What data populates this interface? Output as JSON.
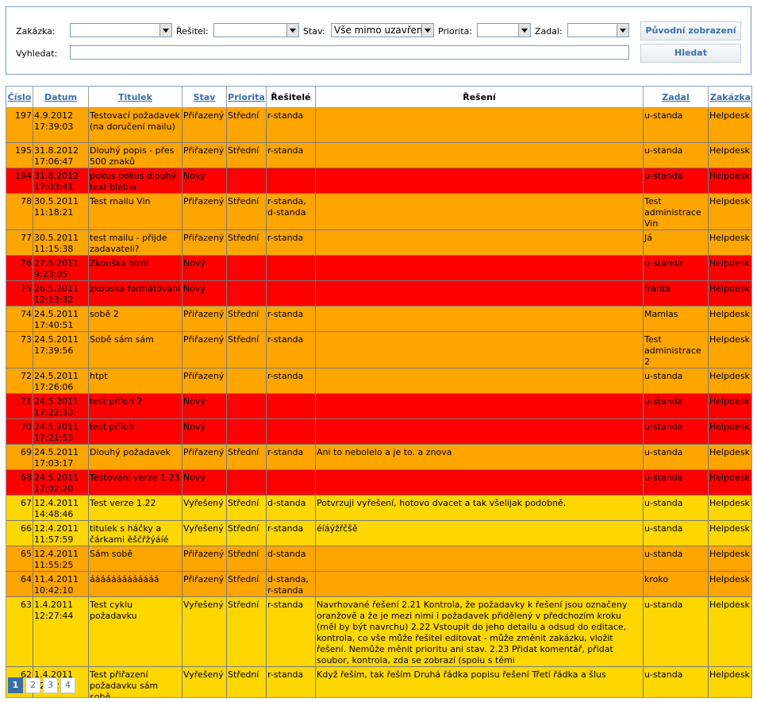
{
  "filters": {
    "zakazka_label": "Zakázka:",
    "zakazka_value": "",
    "resitel_label": "Řešitel:",
    "resitel_value": "",
    "stav_label": "Stav:",
    "stav_value": "Vše mimo uzavřen",
    "priorita_label": "Priorita:",
    "priorita_value": "",
    "zadal_label": "Zadal:",
    "zadal_value": "",
    "vyhledat_label": "Vyhledat:",
    "vyhledat_value": "",
    "reset_button": "Původní zobrazení",
    "search_button": "Hledat"
  },
  "table": {
    "headers": {
      "cislo": "Číslo",
      "datum": "Datum",
      "titulek": "Titulek",
      "stav": "Stav",
      "priorita": "Priorita",
      "resitele": "Řešitelé",
      "reseni": "Řešení",
      "zadal": "Zadal",
      "zakazka": "Zakázka"
    },
    "status_colors": {
      "orange": "#ffa500",
      "red": "#ff0000",
      "yellow": "#ffd700"
    },
    "rows": [
      {
        "cislo": "197",
        "datum": "4.9.2012 17:39:03",
        "titulek": "Testovací požadavek (na doručení mailu)",
        "stav": "Přiřazený",
        "priorita": "Střední",
        "resitele": "r-standa",
        "reseni": "",
        "zadal": "u-standa",
        "zakazka": "Helpdesk",
        "color": "orange"
      },
      {
        "cislo": "195",
        "datum": "31.8.2012 17:06:47",
        "titulek": "Dlouhý popis - přes 500 znaků",
        "stav": "Přiřazený",
        "priorita": "Střední",
        "resitele": "r-standa",
        "reseni": "",
        "zadal": "u-standa",
        "zakazka": "Helpdesk",
        "color": "orange"
      },
      {
        "cislo": "194",
        "datum": "31.8.2012 17:03:41",
        "titulek": "pokus pokus dlouhý text blabla",
        "stav": "Nový",
        "priorita": "",
        "resitele": "",
        "reseni": "",
        "zadal": "u-standa",
        "zakazka": "Helpdesk",
        "color": "red"
      },
      {
        "cislo": "78",
        "datum": "30.5.2011 11:18:21",
        "titulek": "Test mailu Vin",
        "stav": "Přiřazený",
        "priorita": "Střední",
        "resitele": "r-standa, d-standa",
        "reseni": "",
        "zadal": "Test administrace Vin",
        "zakazka": "Helpdesk",
        "color": "orange"
      },
      {
        "cislo": "77",
        "datum": "30.5.2011 11:15:38",
        "titulek": "test mailu - přijde zadavateli?",
        "stav": "Přiřazený",
        "priorita": "Střední",
        "resitele": "r-standa",
        "reseni": "",
        "zadal": "Já",
        "zakazka": "Helpdesk",
        "color": "orange"
      },
      {
        "cislo": "76",
        "datum": "27.5.2011 9:23:05",
        "titulek": "Zkouška html",
        "stav": "Nový",
        "priorita": "",
        "resitele": "",
        "reseni": "",
        "zadal": "u-standa",
        "zakazka": "Helpdesk",
        "color": "red"
      },
      {
        "cislo": "75",
        "datum": "26.5.2011 12:13:32",
        "titulek": "zkouska formatovani",
        "stav": "Nový",
        "priorita": "",
        "resitele": "",
        "reseni": "",
        "zadal": "franta",
        "zakazka": "Helpdesk",
        "color": "red"
      },
      {
        "cislo": "74",
        "datum": "24.5.2011 17:40:51",
        "titulek": "sobě 2",
        "stav": "Přiřazený",
        "priorita": "Střední",
        "resitele": "r-standa",
        "reseni": "",
        "zadal": "Mamlas",
        "zakazka": "Helpdesk",
        "color": "orange"
      },
      {
        "cislo": "73",
        "datum": "24.5.2011 17:39:56",
        "titulek": "Sobě sám sám",
        "stav": "Přiřazený",
        "priorita": "Střední",
        "resitele": "r-standa",
        "reseni": "",
        "zadal": "Test administrace 2",
        "zakazka": "Helpdesk",
        "color": "orange"
      },
      {
        "cislo": "72",
        "datum": "24.5.2011 17:26:06",
        "titulek": "htpt",
        "stav": "Přiřazený",
        "priorita": "",
        "resitele": "r-standa",
        "reseni": "",
        "zadal": "u-standa",
        "zakazka": "Helpdesk",
        "color": "orange"
      },
      {
        "cislo": "71",
        "datum": "24.5.2011 17:22:33",
        "titulek": "test příloh 2",
        "stav": "Nový",
        "priorita": "",
        "resitele": "",
        "reseni": "",
        "zadal": "u-standa",
        "zakazka": "Helpdesk",
        "color": "red"
      },
      {
        "cislo": "70",
        "datum": "24.5.2011 17:21:53",
        "titulek": "test příloh",
        "stav": "Nový",
        "priorita": "",
        "resitele": "",
        "reseni": "",
        "zadal": "u-standa",
        "zakazka": "Helpdesk",
        "color": "red"
      },
      {
        "cislo": "69",
        "datum": "24.5.2011 17:03:17",
        "titulek": "Dlouhý požadavek",
        "stav": "Přiřazený",
        "priorita": "Střední",
        "resitele": "r-standa",
        "reseni": "Ani to nebolelo a je to. a znova",
        "zadal": "u-standa",
        "zakazka": "Helpdesk",
        "color": "orange"
      },
      {
        "cislo": "68",
        "datum": "24.5.2011 17:02:20",
        "titulek": "Testování verze 1.23",
        "stav": "Nový",
        "priorita": "",
        "resitele": "",
        "reseni": "",
        "zadal": "u-standa",
        "zakazka": "Helpdesk",
        "color": "red"
      },
      {
        "cislo": "67",
        "datum": "12.4.2011 14:48:46",
        "titulek": "Test verze 1.22",
        "stav": "Vyřešený",
        "priorita": "Střední",
        "resitele": "d-standa",
        "reseni": "Potvrzuji vyřešení, hotovo dvacet a tak všelijak podobně.",
        "zadal": "u-standa",
        "zakazka": "Helpdesk",
        "color": "yellow"
      },
      {
        "cislo": "66",
        "datum": "12.4.2011 11:57:59",
        "titulek": "titulek s háčky a čárkami ěščřžýáíé",
        "stav": "Vyřešený",
        "priorita": "Střední",
        "resitele": "r-standa",
        "reseni": "éíáýžřčšě",
        "zadal": "u-standa",
        "zakazka": "Helpdesk",
        "color": "yellow"
      },
      {
        "cislo": "65",
        "datum": "12.4.2011 11:55:25",
        "titulek": "Sám sobě",
        "stav": "Přiřazený",
        "priorita": "Střední",
        "resitele": "d-standa",
        "reseni": "",
        "zadal": "u-standa",
        "zakazka": "Helpdesk",
        "color": "orange"
      },
      {
        "cislo": "64",
        "datum": "11.4.2011 10:42:10",
        "titulek": "ááááááááááááá",
        "stav": "Přiřazený",
        "priorita": "Střední",
        "resitele": "d-standa, r-standa",
        "reseni": "",
        "zadal": "kroko",
        "zakazka": "Helpdesk",
        "color": "orange"
      },
      {
        "cislo": "63",
        "datum": "1.4.2011 12:27:44",
        "titulek": "Test cyklu požadavku",
        "stav": "Vyřešený",
        "priorita": "Střední",
        "resitele": "r-standa",
        "reseni": "Navrhované řešení 2.21 Kontrola, že požadavky k řešení jsou označeny oranžově a že je mezi nimi i požadavek přidělený v předchozím kroku (měl by být navrchu) 2.22 Vstoupit do jeho detailu a odsud do editace, kontrola, co vše může řešitel editovat - může změnit zakázku, vložit řešení. Nemůže měnit prioritu ani stav. 2.23 Přidat komentář, přidat soubor, kontrola, zda se zobrazí (spolu s těmi",
        "zadal": "u-standa",
        "zakazka": "Helpdesk",
        "color": "yellow"
      },
      {
        "cislo": "62",
        "datum": "1.4.2011 12:02:39",
        "titulek": "Test přiřazení požadavku sám sobě",
        "stav": "Vyřešený",
        "priorita": "Střední",
        "resitele": "r-standa",
        "reseni": "Když řeším, tak řeším Druhá řádka popisu řešení Třetí řádka a šlus",
        "zadal": "u-standa",
        "zakazka": "Helpdesk",
        "color": "yellow"
      }
    ]
  },
  "pager": {
    "pages": [
      "1",
      "2",
      "3",
      "4"
    ],
    "current": "1"
  }
}
